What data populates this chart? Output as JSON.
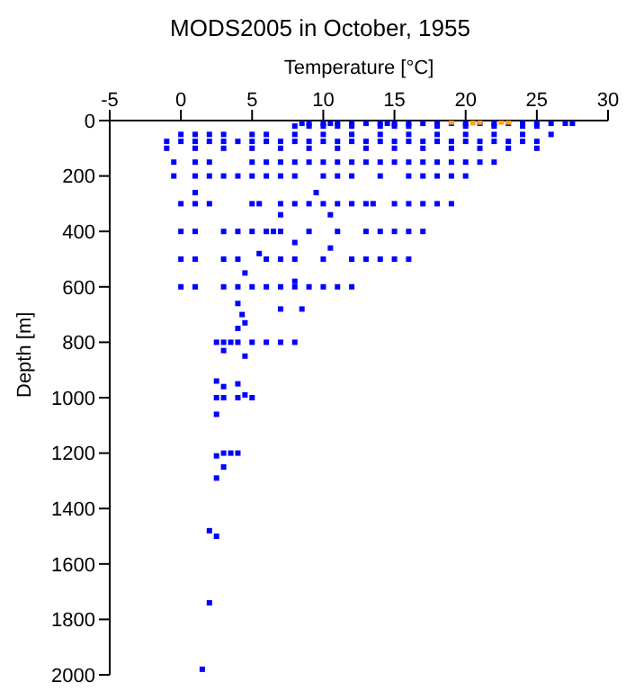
{
  "chart_data": {
    "type": "scatter",
    "title": "MODS2005 in October, 1955",
    "xlabel": "Temperature [°C]",
    "ylabel": "Depth [m]",
    "xlim": [
      -5,
      30
    ],
    "xticks": [
      -5,
      0,
      5,
      10,
      15,
      20,
      25,
      30
    ],
    "ylim": [
      2000,
      0
    ],
    "yticks": [
      0,
      200,
      400,
      600,
      800,
      1000,
      1200,
      1400,
      1600,
      1800,
      2000
    ],
    "grid": false,
    "legend": false,
    "marker": "square",
    "series": [
      {
        "color": "#0000ff",
        "x": [
          8.5,
          9,
          10,
          10.5,
          11,
          12,
          13,
          14,
          14.5,
          15,
          16,
          17,
          18,
          19,
          20,
          21,
          22,
          23,
          24,
          25,
          26,
          27,
          27.5,
          8,
          9,
          10,
          11,
          12,
          14,
          15,
          16,
          18,
          20,
          22,
          24,
          25,
          0,
          1,
          2,
          3,
          5,
          6,
          8,
          10,
          12,
          14,
          16,
          18,
          20,
          22,
          24,
          26,
          -1,
          0,
          1,
          2,
          3,
          4,
          5,
          6,
          7,
          8,
          9,
          10,
          11,
          12,
          13,
          14,
          15,
          16,
          17,
          18,
          19,
          20,
          21,
          22,
          23,
          24,
          25,
          -1,
          1,
          3,
          5,
          7,
          9,
          11,
          13,
          15,
          17,
          19,
          21,
          23,
          25,
          -0.5,
          1,
          2,
          5,
          6,
          7,
          8,
          9,
          10,
          11,
          12,
          13,
          14,
          15,
          16,
          17,
          18,
          19,
          20,
          21,
          22,
          -0.5,
          1,
          2,
          3,
          4,
          5,
          6,
          7,
          8,
          10,
          11,
          12,
          14,
          16,
          17,
          18,
          19,
          20,
          1,
          9.5,
          0,
          1,
          2,
          5,
          5.5,
          7,
          8,
          9,
          10,
          11,
          12,
          13,
          13.5,
          15,
          16,
          17,
          18,
          19,
          7,
          10.5,
          0,
          1,
          3,
          4,
          5,
          6,
          6.5,
          7,
          9,
          11,
          13,
          14,
          15,
          16,
          17,
          8,
          10.5,
          5.5,
          0,
          1,
          3,
          4,
          6,
          7,
          8,
          10,
          12,
          13,
          14,
          15,
          16,
          4.5,
          8,
          0,
          1,
          3,
          4,
          5,
          6,
          7,
          8,
          9,
          10,
          11,
          12,
          4,
          4.3,
          7,
          8.5,
          4.5,
          4,
          2.5,
          3,
          3.5,
          4,
          5,
          6,
          7,
          8,
          3,
          4.5,
          2.5,
          3,
          4,
          2.5,
          3,
          4,
          5,
          4.5,
          2.5,
          2.5,
          3,
          3.5,
          4,
          3,
          2.5,
          2,
          2.5,
          2,
          1.5
        ],
        "values": [
          10,
          10,
          10,
          10,
          10,
          10,
          10,
          10,
          10,
          10,
          10,
          10,
          10,
          10,
          10,
          10,
          10,
          10,
          10,
          10,
          10,
          10,
          10,
          20,
          20,
          20,
          20,
          20,
          20,
          20,
          20,
          20,
          20,
          20,
          20,
          20,
          50,
          50,
          50,
          50,
          50,
          50,
          50,
          50,
          50,
          50,
          50,
          50,
          50,
          50,
          50,
          50,
          75,
          75,
          75,
          75,
          75,
          75,
          75,
          75,
          75,
          75,
          75,
          75,
          75,
          75,
          75,
          75,
          75,
          75,
          75,
          75,
          75,
          75,
          75,
          75,
          75,
          75,
          75,
          100,
          100,
          100,
          100,
          100,
          100,
          100,
          100,
          100,
          100,
          100,
          100,
          100,
          100,
          150,
          150,
          150,
          150,
          150,
          150,
          150,
          150,
          150,
          150,
          150,
          150,
          150,
          150,
          150,
          150,
          150,
          150,
          150,
          150,
          150,
          200,
          200,
          200,
          200,
          200,
          200,
          200,
          200,
          200,
          200,
          200,
          200,
          200,
          200,
          200,
          200,
          200,
          200,
          260,
          260,
          300,
          300,
          300,
          300,
          300,
          300,
          300,
          300,
          300,
          300,
          300,
          300,
          300,
          300,
          300,
          300,
          300,
          300,
          340,
          340,
          400,
          400,
          400,
          400,
          400,
          400,
          400,
          400,
          400,
          400,
          400,
          400,
          400,
          400,
          400,
          440,
          460,
          480,
          500,
          500,
          500,
          500,
          500,
          500,
          500,
          500,
          500,
          500,
          500,
          500,
          500,
          550,
          580,
          600,
          600,
          600,
          600,
          600,
          600,
          600,
          600,
          600,
          600,
          600,
          600,
          660,
          700,
          680,
          680,
          730,
          750,
          800,
          800,
          800,
          800,
          800,
          800,
          800,
          800,
          830,
          850,
          940,
          960,
          950,
          1000,
          1000,
          1000,
          1000,
          990,
          1060,
          1210,
          1200,
          1200,
          1200,
          1250,
          1290,
          1480,
          1500,
          1740,
          1980
        ]
      },
      {
        "color": "#ffa500",
        "x": [
          19,
          20.5,
          21,
          22.5,
          23
        ],
        "values": [
          5,
          8,
          5,
          5,
          5
        ]
      }
    ]
  }
}
